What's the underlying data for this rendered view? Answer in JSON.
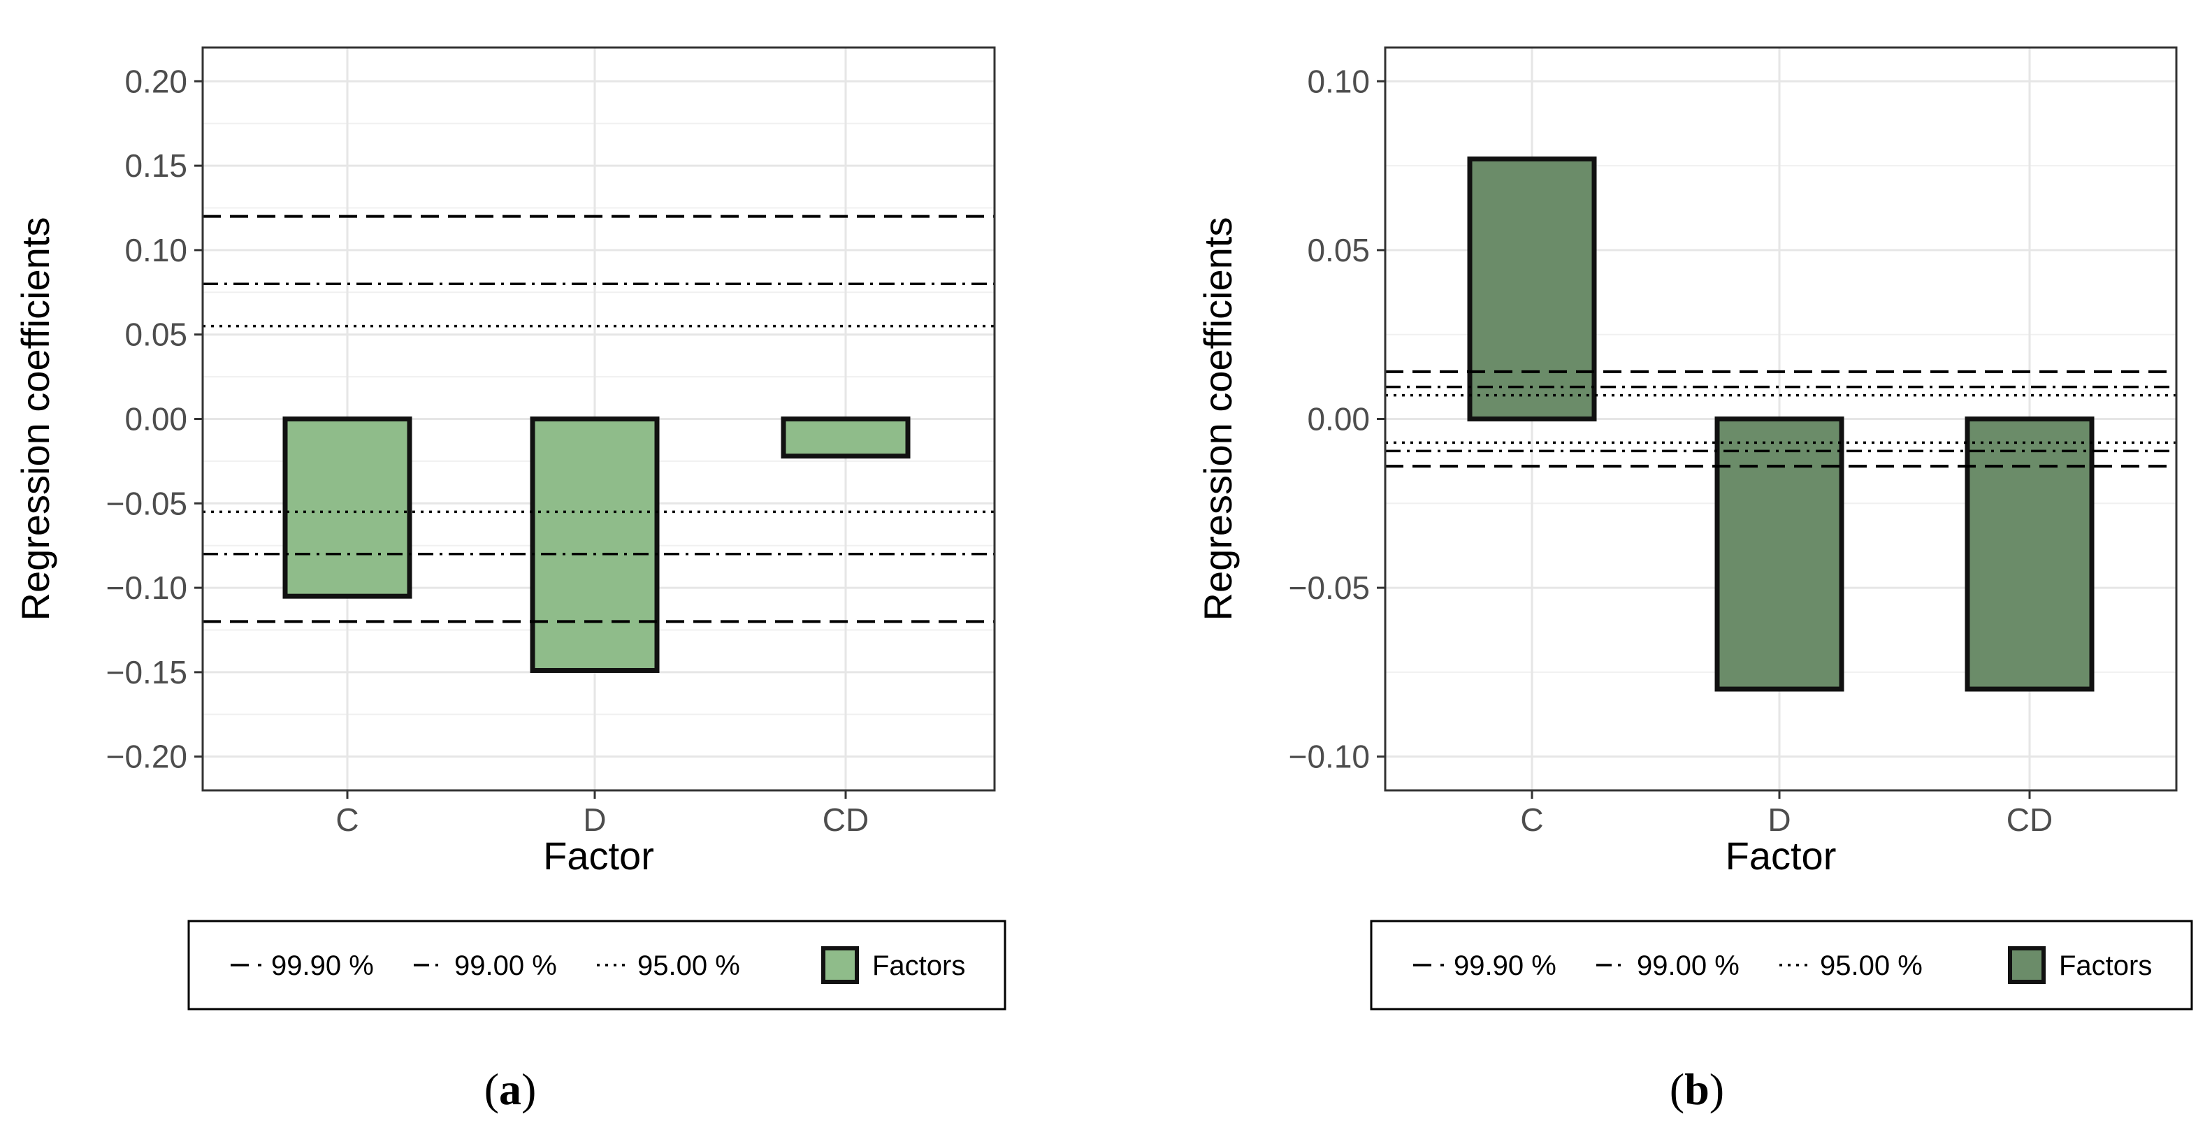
{
  "chart_data": [
    {
      "panel": "a",
      "panel_label": "a",
      "type": "bar",
      "categories": [
        "C",
        "D",
        "CD"
      ],
      "values": [
        -0.105,
        -0.149,
        -0.022
      ],
      "ylim": [
        -0.22,
        0.22
      ],
      "yticks": [
        0.2,
        0.15,
        0.1,
        0.05,
        0.0,
        -0.05,
        -0.1,
        -0.15,
        -0.2
      ],
      "ytick_labels": [
        "0.20",
        "0.15",
        "0.10",
        "0.05",
        "0.00",
        "−0.05",
        "−0.10",
        "−0.15",
        "−0.20"
      ],
      "xlabel": "Factor",
      "ylabel": "Regression coefficients",
      "bar_color": "#8fbc8a",
      "reference_lines": [
        {
          "label": "99.90 %",
          "style": "dashed",
          "value": 0.12
        },
        {
          "label": "99.00 %",
          "style": "dashdot",
          "value": 0.08
        },
        {
          "label": "95.00 %",
          "style": "dotted",
          "value": 0.055
        }
      ],
      "legend": {
        "line_entries": [
          "99.90 %",
          "99.00 %",
          "95.00 %"
        ],
        "fill_entry": "Factors",
        "position": "bottom"
      }
    },
    {
      "panel": "b",
      "panel_label": "b",
      "type": "bar",
      "categories": [
        "C",
        "D",
        "CD"
      ],
      "values": [
        0.077,
        -0.08,
        -0.08
      ],
      "ylim": [
        -0.11,
        0.11
      ],
      "yticks": [
        0.1,
        0.05,
        0.0,
        -0.05,
        -0.1
      ],
      "ytick_labels": [
        "0.10",
        "0.05",
        "0.00",
        "−0.05",
        "−0.10"
      ],
      "xlabel": "Factor",
      "ylabel": "Regression coefficients",
      "bar_color": "#6b8c69",
      "reference_lines": [
        {
          "label": "99.90 %",
          "style": "dashed",
          "value": 0.014
        },
        {
          "label": "99.00 %",
          "style": "dashdot",
          "value": 0.0095
        },
        {
          "label": "95.00 %",
          "style": "dotted",
          "value": 0.007
        }
      ],
      "legend": {
        "line_entries": [
          "99.90 %",
          "99.00 %",
          "95.00 %"
        ],
        "fill_entry": "Factors",
        "position": "bottom"
      }
    }
  ]
}
